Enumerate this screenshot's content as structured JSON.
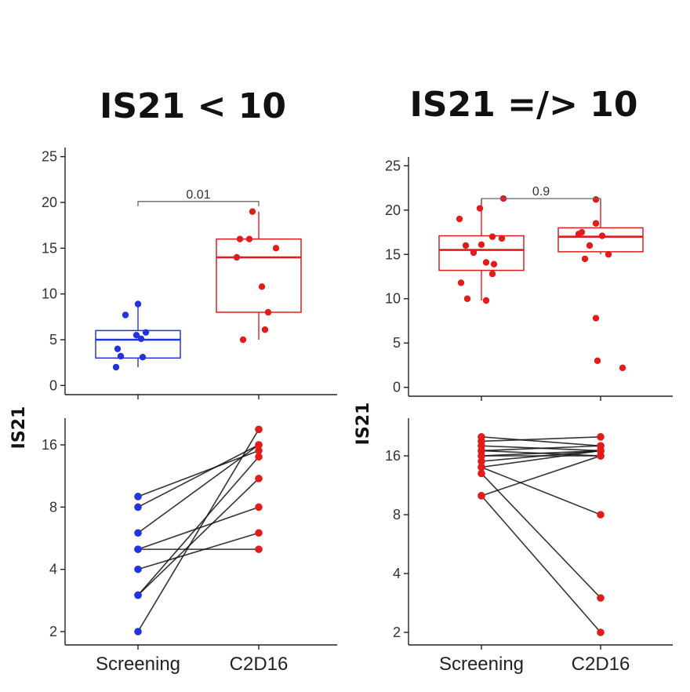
{
  "colors": {
    "blue": "#2233dd",
    "red": "#e21b1b",
    "axis": "#222222",
    "pair_line": "#111111",
    "bracket": "#666666"
  },
  "chart_data": [
    {
      "id": "left",
      "type": "box+scatter",
      "title": "IS21 < 10",
      "ylabel": "IS21",
      "categories": [
        "Screening",
        "C2D16"
      ],
      "ylim": [
        -1,
        26
      ],
      "yticks": [
        "0",
        "5",
        "10",
        "15",
        "20",
        "25"
      ],
      "pvalue": "0.01",
      "bracket_y": 20.1,
      "boxes": [
        {
          "group": "Screening",
          "color": "blue",
          "q1": 3.0,
          "median": 5.0,
          "q3": 6.0,
          "whisker_low": 2.0,
          "whisker_high": 8.9
        },
        {
          "group": "C2D16",
          "color": "red",
          "q1": 8.0,
          "median": 14.0,
          "q3": 16.0,
          "whisker_low": 5.0,
          "whisker_high": 19.0
        }
      ],
      "points": [
        {
          "group": "Screening",
          "color": "blue",
          "values": [
            8.9,
            7.7,
            5.8,
            5.5,
            5.1,
            4.0,
            3.2,
            3.1,
            2.0
          ],
          "jitter": [
            0,
            -16,
            10,
            -2,
            4,
            -26,
            -22,
            6,
            -28
          ]
        },
        {
          "group": "C2D16",
          "color": "red",
          "values": [
            19.0,
            16.0,
            16.0,
            15.0,
            14.0,
            10.8,
            8.0,
            6.1,
            5.0
          ],
          "jitter": [
            -8,
            -24,
            -12,
            22,
            -28,
            4,
            12,
            8,
            -20
          ]
        }
      ]
    },
    {
      "id": "left-paired",
      "type": "paired-line",
      "categories": [
        "Screening",
        "C2D16"
      ],
      "yscale": "log2",
      "ylim": [
        1.8,
        22
      ],
      "yticks": [
        "2",
        "4",
        "8",
        "16"
      ],
      "pairs": [
        {
          "before": 9.0,
          "after": 15.0
        },
        {
          "before": 8.0,
          "after": 16.0
        },
        {
          "before": 6.0,
          "after": 16.0
        },
        {
          "before": 5.0,
          "after": 5.0
        },
        {
          "before": 5.0,
          "after": 8.0
        },
        {
          "before": 4.0,
          "after": 6.0
        },
        {
          "before": 3.0,
          "after": 14.0
        },
        {
          "before": 3.0,
          "after": 11.0
        },
        {
          "before": 2.0,
          "after": 19.0
        }
      ]
    },
    {
      "id": "right",
      "type": "box+scatter",
      "title": "IS21 =/> 10",
      "ylabel": "IS21",
      "categories": [
        "Screening",
        "C2D16"
      ],
      "ylim": [
        -1,
        26
      ],
      "yticks": [
        "0",
        "5",
        "10",
        "15",
        "20",
        "25"
      ],
      "pvalue": "0.9",
      "bracket_y": 21.3,
      "boxes": [
        {
          "group": "Screening",
          "color": "red",
          "q1": 13.2,
          "median": 15.5,
          "q3": 17.1,
          "whisker_low": 9.8,
          "whisker_high": 21.3
        },
        {
          "group": "C2D16",
          "color": "red",
          "q1": 15.3,
          "median": 17.0,
          "q3": 18.0,
          "whisker_low": 15.0,
          "whisker_high": 21.2
        }
      ],
      "points": [
        {
          "group": "Screening",
          "color": "red",
          "values": [
            21.3,
            20.2,
            19.0,
            17.0,
            16.8,
            16.1,
            16.0,
            15.2,
            14.1,
            13.9,
            12.8,
            11.8,
            10.0,
            9.8
          ],
          "jitter": [
            28,
            -2,
            -28,
            14,
            26,
            0,
            -20,
            -10,
            6,
            16,
            14,
            -26,
            -18,
            6
          ]
        },
        {
          "group": "C2D16",
          "color": "red",
          "values": [
            21.2,
            18.5,
            17.5,
            17.3,
            17.1,
            16.0,
            15.0,
            14.5,
            7.8,
            3.0,
            2.2
          ],
          "jitter": [
            -6,
            -6,
            -24,
            -28,
            2,
            -14,
            10,
            -20,
            -6,
            -4,
            28
          ]
        }
      ]
    },
    {
      "id": "right-paired",
      "type": "paired-line",
      "categories": [
        "Screening",
        "C2D16"
      ],
      "yscale": "log2",
      "ylim": [
        1.8,
        22
      ],
      "yticks": [
        "2",
        "4",
        "8",
        "16"
      ],
      "pairs": [
        {
          "before": 20.0,
          "after": 18.0
        },
        {
          "before": 19.0,
          "after": 20.0
        },
        {
          "before": 18.0,
          "after": 17.0
        },
        {
          "before": 17.0,
          "after": 18.0
        },
        {
          "before": 17.0,
          "after": 16.0
        },
        {
          "before": 16.0,
          "after": 17.0
        },
        {
          "before": 16.0,
          "after": 16.0
        },
        {
          "before": 15.0,
          "after": 17.0
        },
        {
          "before": 14.0,
          "after": 8.0
        },
        {
          "before": 14.0,
          "after": 17.0
        },
        {
          "before": 13.0,
          "after": 3.0
        },
        {
          "before": 10.0,
          "after": 2.0
        },
        {
          "before": 10.0,
          "after": 16.0
        }
      ]
    }
  ]
}
